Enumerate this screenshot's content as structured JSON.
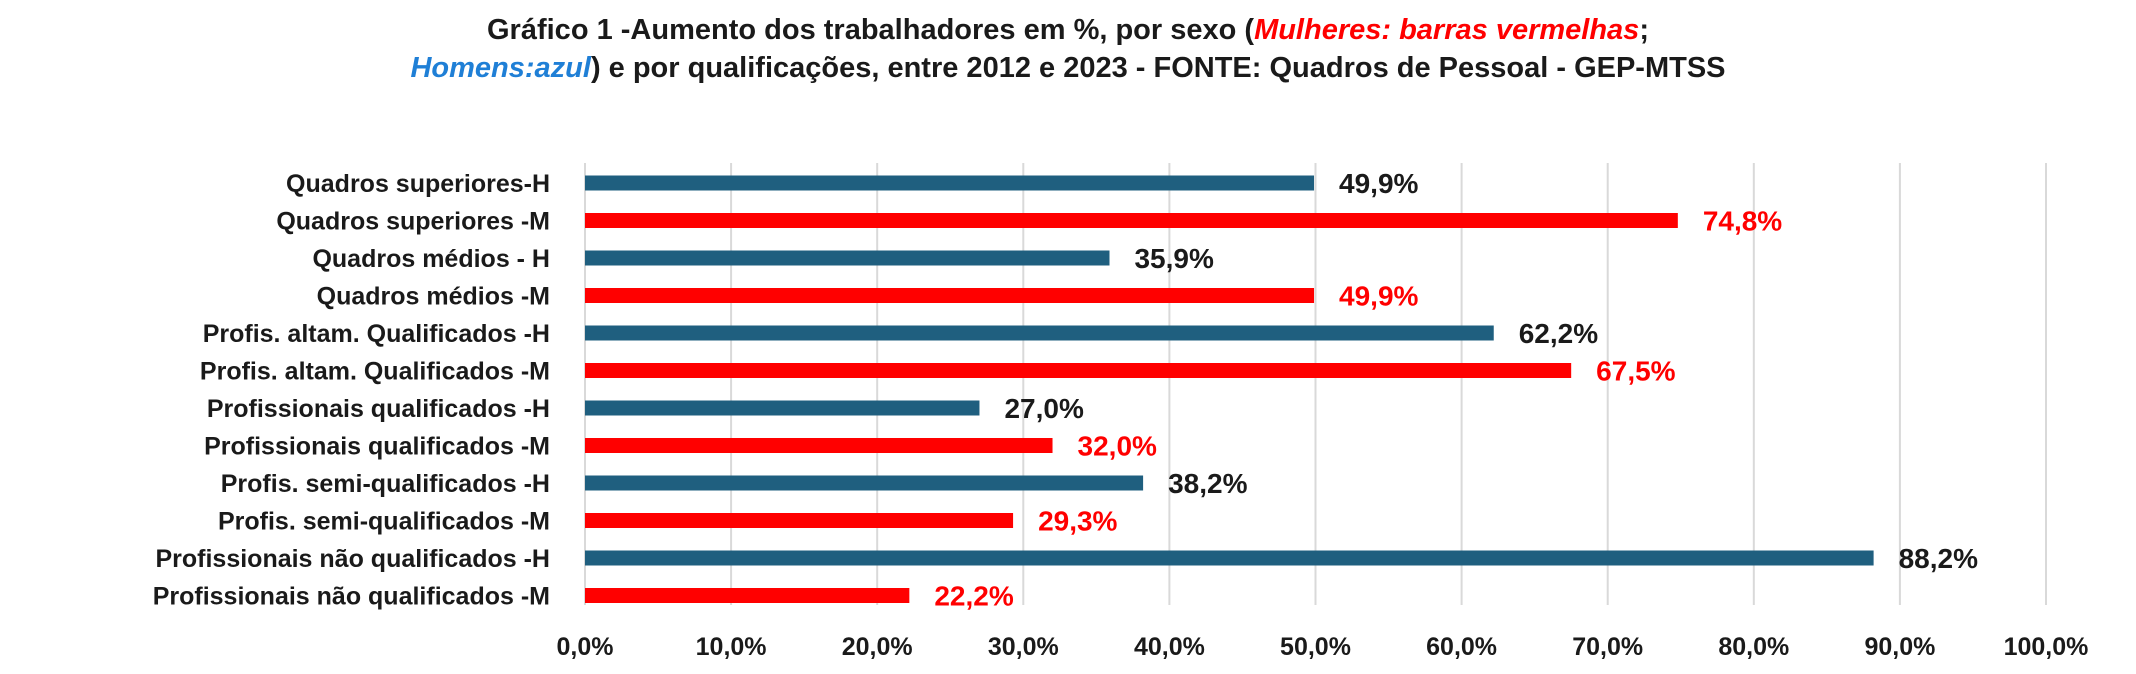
{
  "title": {
    "line1_prefix": "Gráfico 1 -Aumento dos trabalhadores em %, por sexo (",
    "line1_red": "Mulheres: barras vermelhas",
    "line1_suffix": ";",
    "line2_blue": "Homens:azul",
    "line2_suffix": ") e por qualificações, entre 2012 e 2023 - FONTE: Quadros de Pessoal - GEP-MTSS"
  },
  "colors": {
    "homens": "#1f5f7f",
    "mulheres": "#ff0000",
    "grid": "#d9d9d9",
    "label_dark": "#1a1a1a"
  },
  "chart_data": {
    "type": "bar",
    "orientation": "horizontal",
    "categories": [
      "Quadros superiores-H",
      "Quadros superiores -M",
      "Quadros médios - H",
      "Quadros médios -M",
      "Profis. altam. Qualificados -H",
      "Profis. altam. Qualificados -M",
      "Profissionais qualificados -H",
      "Profissionais qualificados -M",
      "Profis. semi-qualificados -H",
      "Profis. semi-qualificados -M",
      "Profissionais não qualificados -H",
      "Profissionais não qualificados -M"
    ],
    "values": [
      49.9,
      74.8,
      35.9,
      49.9,
      62.2,
      67.5,
      27.0,
      32.0,
      38.2,
      29.3,
      88.2,
      22.2
    ],
    "value_labels": [
      "49,9%",
      "74,8%",
      "35,9%",
      "49,9%",
      "62,2%",
      "67,5%",
      "27,0%",
      "32,0%",
      "38,2%",
      "29,3%",
      "88,2%",
      "22,2%"
    ],
    "sex": [
      "H",
      "M",
      "H",
      "M",
      "H",
      "M",
      "H",
      "M",
      "H",
      "M",
      "H",
      "M"
    ],
    "xlim": [
      0,
      100
    ],
    "xticks": [
      0,
      10,
      20,
      30,
      40,
      50,
      60,
      70,
      80,
      90,
      100
    ],
    "xtick_labels": [
      "0,0%",
      "10,0%",
      "20,0%",
      "30,0%",
      "40,0%",
      "50,0%",
      "60,0%",
      "70,0%",
      "80,0%",
      "90,0%",
      "100,0%"
    ],
    "grid": true
  }
}
